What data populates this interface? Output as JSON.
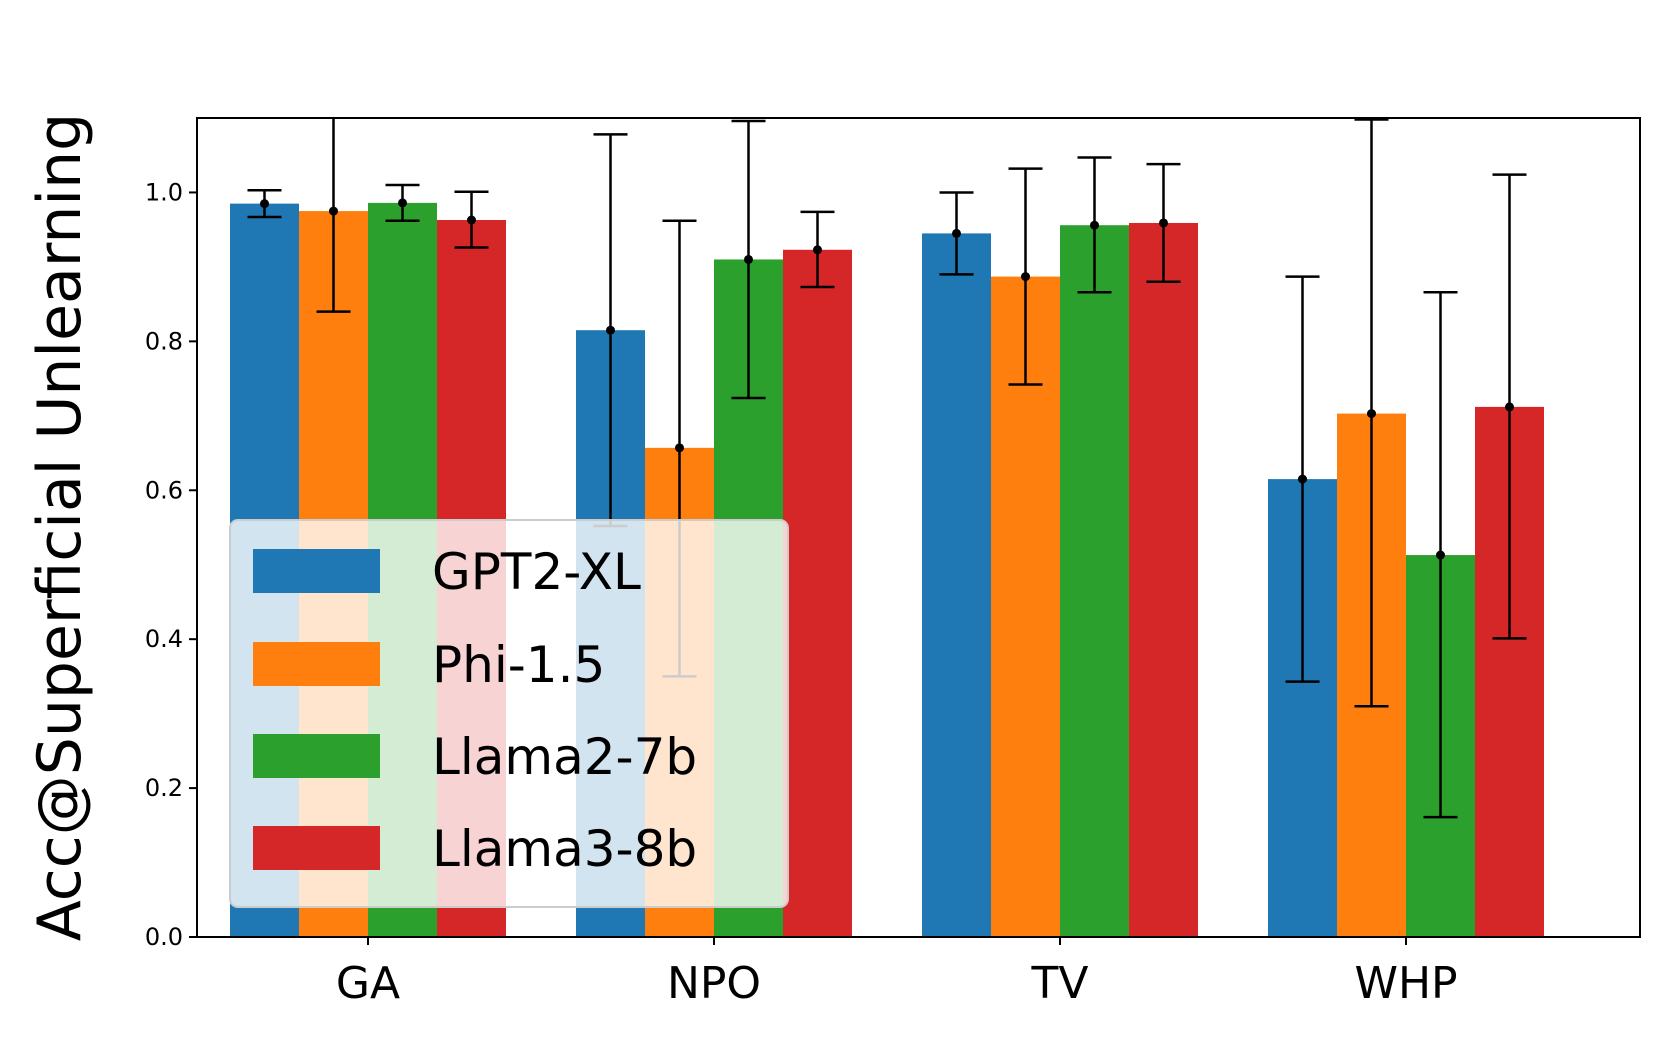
{
  "chart_data": {
    "type": "bar",
    "title": "",
    "xlabel": "",
    "ylabel": "Acc@Superficial Unlearning",
    "ylim": [
      0,
      1.1
    ],
    "yticks": [
      "0.0",
      "0.2",
      "0.4",
      "0.6",
      "0.8",
      "1.0"
    ],
    "categories": [
      "GA",
      "NPO",
      "TV",
      "WHP"
    ],
    "legend_position": "center-left",
    "series": [
      {
        "name": "GPT2-XL",
        "color": "#1f77b4",
        "values": [
          0.985,
          0.815,
          0.945,
          0.615
        ],
        "err_low": [
          0.967,
          0.552,
          0.89,
          0.343
        ],
        "err_high": [
          1.003,
          1.078,
          1.0,
          0.887
        ]
      },
      {
        "name": "Phi-1.5",
        "color": "#ff7f0e",
        "values": [
          0.975,
          0.657,
          0.887,
          0.703
        ],
        "err_low": [
          0.84,
          0.35,
          0.742,
          0.31
        ],
        "err_high": [
          1.11,
          0.962,
          1.032,
          1.098
        ]
      },
      {
        "name": "Llama2-7b",
        "color": "#2ca02c",
        "values": [
          0.986,
          0.91,
          0.956,
          0.513
        ],
        "err_low": [
          0.962,
          0.724,
          0.866,
          0.161
        ],
        "err_high": [
          1.01,
          1.096,
          1.047,
          0.866
        ]
      },
      {
        "name": "Llama3-8b",
        "color": "#d62728",
        "values": [
          0.963,
          0.923,
          0.959,
          0.712
        ],
        "err_low": [
          0.926,
          0.873,
          0.88,
          0.401
        ],
        "err_high": [
          1.001,
          0.974,
          1.038,
          1.024
        ]
      }
    ]
  }
}
